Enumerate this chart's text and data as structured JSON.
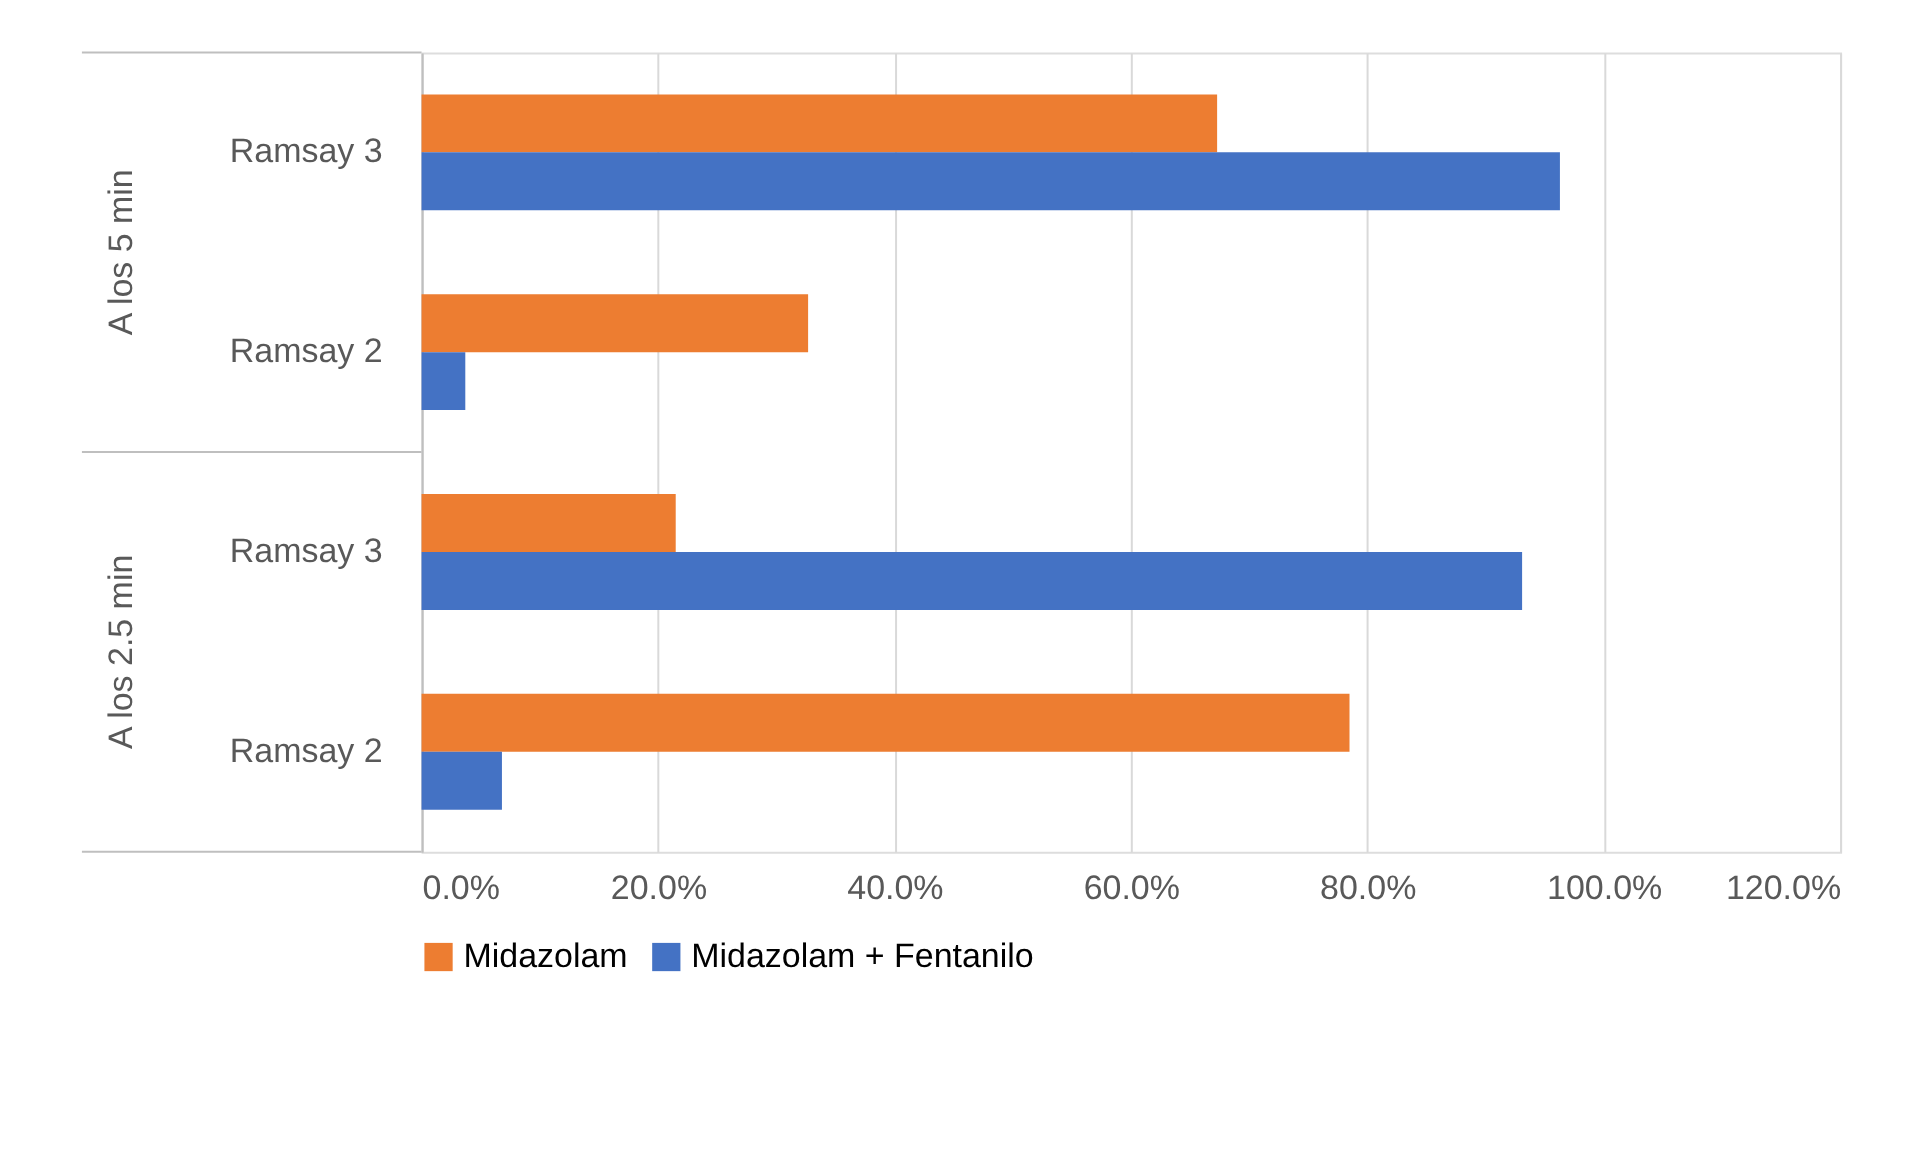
{
  "chart_data": {
    "type": "bar",
    "orientation": "horizontal",
    "categories": [
      "Ramsay 3",
      "Ramsay 2",
      "Ramsay 3",
      "Ramsay 2"
    ],
    "series": [
      {
        "name": "Midazolam",
        "color": "#ed7d31",
        "values": [
          67.3,
          32.7,
          21.5,
          78.5
        ]
      },
      {
        "name": "Midazolam + Fentanilo",
        "color": "#4472c4",
        "values": [
          96.3,
          3.7,
          93.1,
          6.8
        ]
      }
    ],
    "annotations": [
      "A los 5 min",
      "A los 2.5 min"
    ],
    "xlim": [
      0,
      120
    ],
    "xticks": [
      {
        "value": 0,
        "label": "0.0%"
      },
      {
        "value": 20,
        "label": "20.0%"
      },
      {
        "value": 40,
        "label": "40.0%"
      },
      {
        "value": 60,
        "label": "60.0%"
      },
      {
        "value": 80,
        "label": "80.0%"
      },
      {
        "value": 100,
        "label": "100.0%"
      },
      {
        "value": 120,
        "label": "120.0%"
      }
    ],
    "grid": "x",
    "legend": "bottom"
  }
}
